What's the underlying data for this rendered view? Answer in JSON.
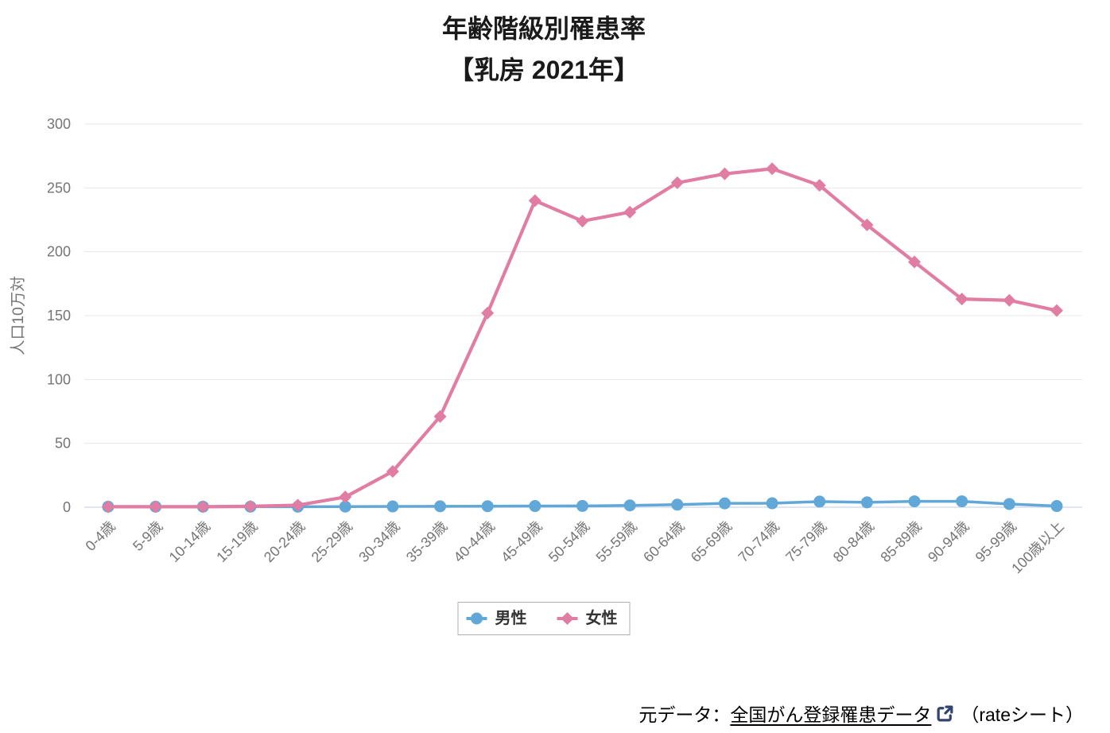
{
  "title": "年齢階級別罹患率",
  "subtitle": "【乳房 2021年】",
  "chart_data": {
    "type": "line",
    "categories": [
      "0-4歳",
      "5-9歳",
      "10-14歳",
      "15-19歳",
      "20-24歳",
      "25-29歳",
      "30-34歳",
      "35-39歳",
      "40-44歳",
      "45-49歳",
      "50-54歳",
      "55-59歳",
      "60-64歳",
      "65-69歳",
      "70-74歳",
      "75-79歳",
      "80-84歳",
      "85-89歳",
      "90-94歳",
      "95-99歳",
      "100歳以上"
    ],
    "series": [
      {
        "id": "male",
        "name": "男性",
        "color": "#61a8d8",
        "marker": "circle",
        "values": [
          0.4,
          0.4,
          0.4,
          0.4,
          0.4,
          0.5,
          0.6,
          0.7,
          0.8,
          0.9,
          1.0,
          1.4,
          2.0,
          3.0,
          3.1,
          4.4,
          3.8,
          4.6,
          4.6,
          2.5,
          0.9
        ]
      },
      {
        "id": "female",
        "name": "女性",
        "color": "#e17ca3",
        "marker": "diamond",
        "values": [
          0.4,
          0.4,
          0.4,
          0.7,
          1.6,
          8,
          28,
          71,
          152,
          240,
          224,
          231,
          254,
          261,
          265,
          252,
          221,
          192,
          163,
          162,
          154
        ]
      }
    ],
    "ylabel": "人口10万対",
    "ylim": [
      0,
      300
    ],
    "yticks": [
      0,
      50,
      100,
      150,
      200,
      250,
      300
    ],
    "grid": true,
    "legend_position": "bottom"
  },
  "legend": {
    "male_label": "男性",
    "female_label": "女性"
  },
  "footer": {
    "prefix": "元データ：",
    "link_text": "全国がん登録罹患データ",
    "icon": "external-link",
    "suffix": "（rateシート）"
  },
  "colors": {
    "grid": "#e7e7e7",
    "zero_line": "#cdd5ea",
    "tick_text": "#757575",
    "footer_icon": "#31436e"
  }
}
